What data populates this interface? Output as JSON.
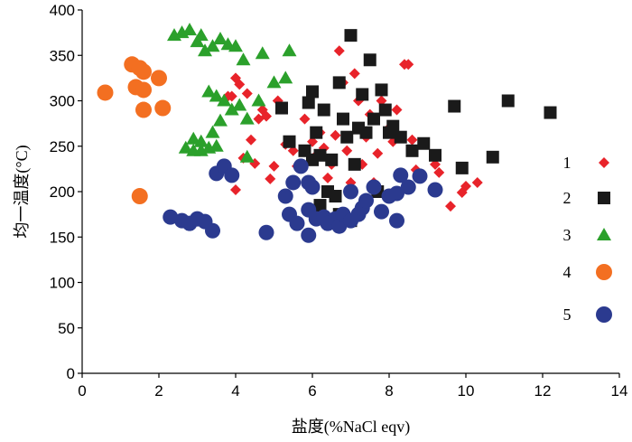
{
  "chart_data": {
    "type": "scatter",
    "xlabel": "盐度(%NaCl eqv)",
    "ylabel": "均一温度(°C)",
    "xlim": [
      0,
      14
    ],
    "ylim": [
      0,
      400
    ],
    "xticks": [
      "0",
      "2",
      "4",
      "6",
      "8",
      "10",
      "12",
      "14"
    ],
    "yticks": [
      "0",
      "50",
      "100",
      "150",
      "200",
      "250",
      "300",
      "350",
      "400"
    ],
    "legend_position": "right",
    "series": [
      {
        "name": "1",
        "marker": "diamond",
        "color": "#e8232a",
        "points": [
          [
            4.0,
            202
          ],
          [
            4.2,
            237
          ],
          [
            4.4,
            257
          ],
          [
            4.5,
            231
          ],
          [
            4.6,
            280
          ],
          [
            4.7,
            290
          ],
          [
            4.8,
            283
          ],
          [
            4.9,
            214
          ],
          [
            5.0,
            228
          ],
          [
            5.1,
            300
          ],
          [
            5.3,
            252
          ],
          [
            5.5,
            245
          ],
          [
            5.6,
            228
          ],
          [
            5.8,
            280
          ],
          [
            5.9,
            300
          ],
          [
            6.0,
            255
          ],
          [
            6.1,
            240
          ],
          [
            6.2,
            265
          ],
          [
            6.3,
            248
          ],
          [
            6.4,
            215
          ],
          [
            6.5,
            230
          ],
          [
            6.6,
            262
          ],
          [
            6.7,
            355
          ],
          [
            6.8,
            320
          ],
          [
            6.9,
            245
          ],
          [
            7.0,
            210
          ],
          [
            7.1,
            330
          ],
          [
            7.2,
            300
          ],
          [
            7.3,
            230
          ],
          [
            7.4,
            260
          ],
          [
            7.5,
            285
          ],
          [
            7.6,
            210
          ],
          [
            7.7,
            242
          ],
          [
            7.8,
            300
          ],
          [
            8.0,
            270
          ],
          [
            8.1,
            255
          ],
          [
            8.2,
            290
          ],
          [
            8.4,
            340
          ],
          [
            8.5,
            340
          ],
          [
            8.6,
            257
          ],
          [
            8.7,
            224
          ],
          [
            9.2,
            230
          ],
          [
            9.3,
            221
          ],
          [
            9.6,
            184
          ],
          [
            9.9,
            199
          ],
          [
            10.0,
            206
          ],
          [
            10.3,
            210
          ],
          [
            3.9,
            305
          ],
          [
            4.1,
            318
          ],
          [
            4.3,
            308
          ],
          [
            4.0,
            325
          ],
          [
            3.8,
            305
          ]
        ]
      },
      {
        "name": "2",
        "marker": "square",
        "color": "#1a1a1a",
        "points": [
          [
            5.2,
            292
          ],
          [
            5.4,
            255
          ],
          [
            5.8,
            245
          ],
          [
            5.9,
            298
          ],
          [
            6.0,
            310
          ],
          [
            6.1,
            265
          ],
          [
            6.2,
            240
          ],
          [
            6.3,
            290
          ],
          [
            6.4,
            200
          ],
          [
            6.5,
            235
          ],
          [
            6.6,
            195
          ],
          [
            6.7,
            320
          ],
          [
            6.8,
            280
          ],
          [
            6.9,
            260
          ],
          [
            7.0,
            372
          ],
          [
            7.1,
            230
          ],
          [
            7.2,
            270
          ],
          [
            7.3,
            307
          ],
          [
            7.4,
            265
          ],
          [
            7.5,
            345
          ],
          [
            7.6,
            280
          ],
          [
            7.7,
            200
          ],
          [
            7.8,
            312
          ],
          [
            7.9,
            290
          ],
          [
            8.0,
            265
          ],
          [
            8.1,
            272
          ],
          [
            8.3,
            260
          ],
          [
            8.6,
            245
          ],
          [
            8.9,
            253
          ],
          [
            9.2,
            240
          ],
          [
            9.7,
            294
          ],
          [
            9.9,
            226
          ],
          [
            10.7,
            238
          ],
          [
            11.1,
            300
          ],
          [
            12.2,
            287
          ],
          [
            6.2,
            185
          ],
          [
            6.7,
            175
          ],
          [
            7.0,
            168
          ],
          [
            6.0,
            235
          ]
        ]
      },
      {
        "name": "3",
        "marker": "triangle",
        "color": "#2ba02b",
        "points": [
          [
            2.4,
            372
          ],
          [
            2.6,
            375
          ],
          [
            2.8,
            378
          ],
          [
            3.0,
            365
          ],
          [
            3.1,
            372
          ],
          [
            3.2,
            355
          ],
          [
            3.4,
            360
          ],
          [
            3.6,
            368
          ],
          [
            3.8,
            362
          ],
          [
            4.0,
            360
          ],
          [
            4.2,
            345
          ],
          [
            4.7,
            352
          ],
          [
            5.0,
            320
          ],
          [
            5.3,
            325
          ],
          [
            5.4,
            355
          ],
          [
            3.3,
            310
          ],
          [
            3.5,
            305
          ],
          [
            3.7,
            300
          ],
          [
            3.9,
            290
          ],
          [
            4.1,
            295
          ],
          [
            4.3,
            280
          ],
          [
            4.6,
            300
          ],
          [
            3.6,
            278
          ],
          [
            3.4,
            265
          ],
          [
            3.1,
            255
          ],
          [
            2.9,
            258
          ],
          [
            2.7,
            248
          ],
          [
            2.9,
            245
          ],
          [
            3.1,
            245
          ],
          [
            3.3,
            248
          ],
          [
            3.5,
            250
          ],
          [
            4.3,
            238
          ]
        ]
      },
      {
        "name": "4",
        "marker": "circle",
        "color": "#f36f21",
        "points": [
          [
            0.6,
            309
          ],
          [
            1.3,
            340
          ],
          [
            1.5,
            336
          ],
          [
            1.6,
            332
          ],
          [
            1.4,
            315
          ],
          [
            1.6,
            312
          ],
          [
            2.0,
            325
          ],
          [
            2.1,
            292
          ],
          [
            1.6,
            290
          ],
          [
            1.5,
            195
          ]
        ]
      },
      {
        "name": "5",
        "marker": "circle",
        "color": "#2b3a8f",
        "points": [
          [
            2.3,
            172
          ],
          [
            2.6,
            168
          ],
          [
            2.8,
            165
          ],
          [
            3.0,
            170
          ],
          [
            3.2,
            167
          ],
          [
            3.4,
            157
          ],
          [
            3.5,
            220
          ],
          [
            3.7,
            228
          ],
          [
            3.9,
            218
          ],
          [
            4.8,
            155
          ],
          [
            5.3,
            195
          ],
          [
            5.5,
            210
          ],
          [
            5.4,
            175
          ],
          [
            5.6,
            165
          ],
          [
            5.7,
            228
          ],
          [
            5.9,
            180
          ],
          [
            5.9,
            152
          ],
          [
            6.1,
            170
          ],
          [
            6.3,
            172
          ],
          [
            6.4,
            165
          ],
          [
            6.6,
            170
          ],
          [
            6.7,
            162
          ],
          [
            6.8,
            175
          ],
          [
            7.0,
            168
          ],
          [
            7.2,
            175
          ],
          [
            7.3,
            182
          ],
          [
            7.0,
            200
          ],
          [
            7.4,
            190
          ],
          [
            7.6,
            205
          ],
          [
            7.8,
            178
          ],
          [
            8.0,
            195
          ],
          [
            8.2,
            198
          ],
          [
            8.2,
            168
          ],
          [
            8.3,
            218
          ],
          [
            8.5,
            205
          ],
          [
            8.8,
            217
          ],
          [
            9.2,
            202
          ],
          [
            5.9,
            210
          ],
          [
            6.0,
            205
          ]
        ]
      }
    ]
  }
}
